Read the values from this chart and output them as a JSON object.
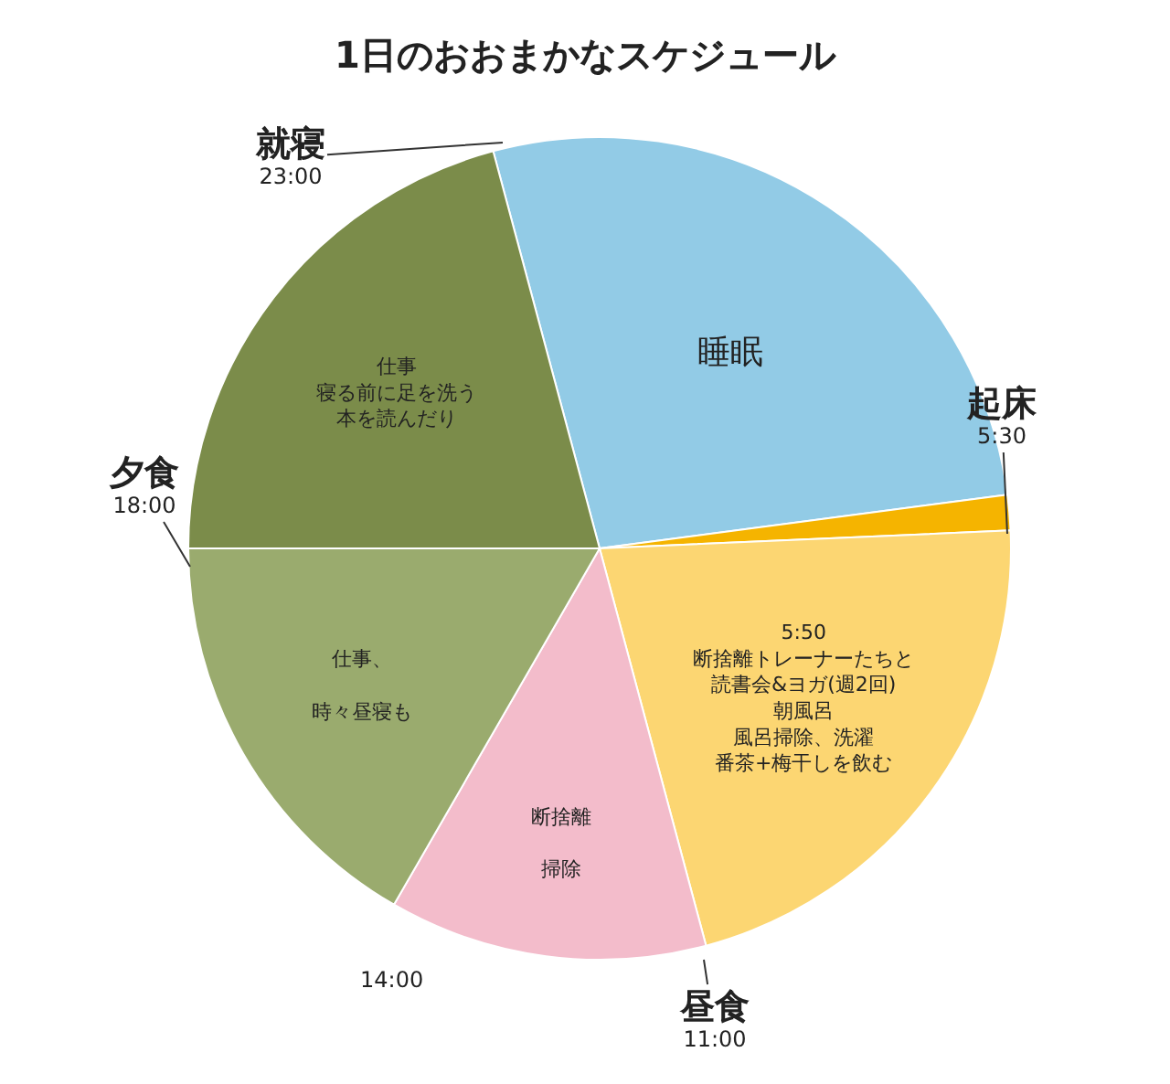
{
  "chart_data": {
    "type": "pie",
    "title": "1日のおおまかなスケジュール",
    "categories": [
      "睡眠",
      null,
      "5:50断捨離トレーナーたちと読書会&ヨガ(週2回)朝風呂風呂掃除、洗濯番茶+梅干しを飲む",
      "断捨離掃除",
      "仕事、時々昼寝も",
      "仕事寝る前に足を洗う本を読んだり"
    ],
    "values": [
      27.08,
      1.39,
      21.53,
      12.5,
      16.67,
      20.83
    ],
    "colors": [
      "#92cbe6",
      "#f5b400",
      "#fcd672",
      "#f3bccb",
      "#9aab6e",
      "#7b8c4a"
    ],
    "annotations": [
      "就寝\n23:00",
      "起床\n5:30",
      "昼食\n11:00",
      "夕食\n18:00",
      "14:00"
    ],
    "legend": false
  }
}
